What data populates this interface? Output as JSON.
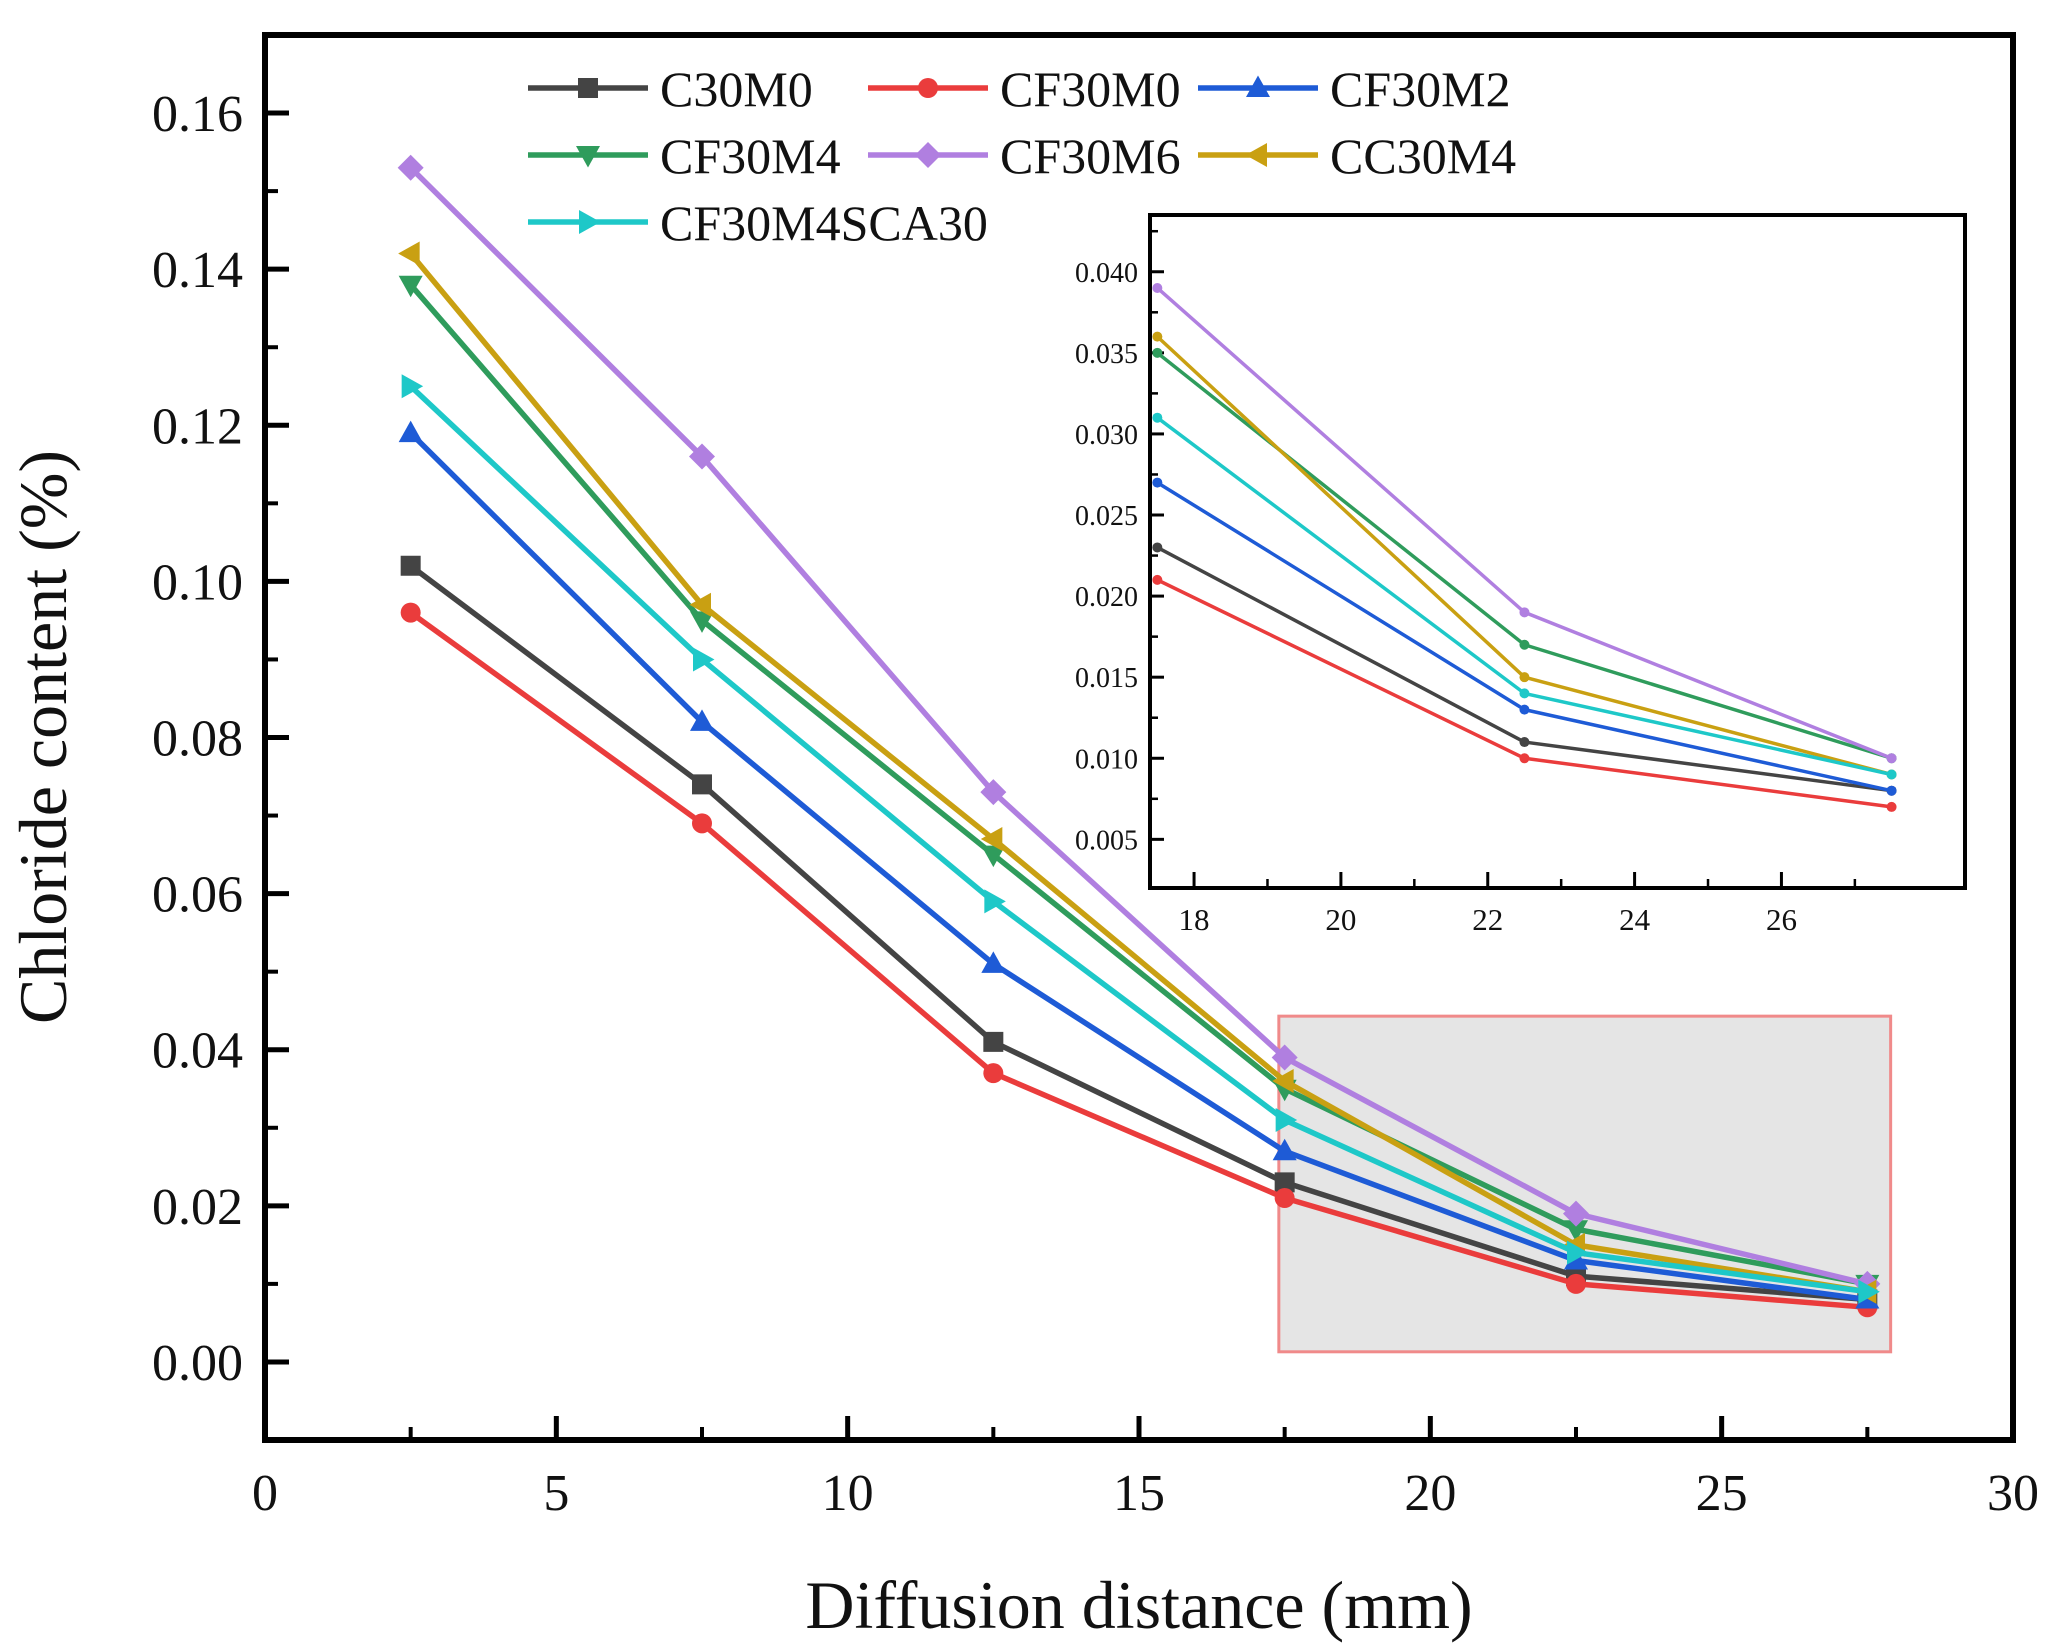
{
  "chart_data": [
    {
      "type": "line",
      "xlabel": "Diffusion distance (mm)",
      "ylabel": "Chloride content (%)",
      "xlim": [
        0,
        30
      ],
      "ylim": [
        -0.01,
        0.17
      ],
      "x_ticks": [
        "0",
        "5",
        "10",
        "15",
        "20",
        "25",
        "30"
      ],
      "y_ticks": [
        "0.00",
        "0.02",
        "0.04",
        "0.06",
        "0.08",
        "0.10",
        "0.12",
        "0.14",
        "0.16"
      ],
      "x": [
        2.5,
        7.5,
        12.5,
        17.5,
        22.5,
        27.5
      ],
      "legend_position": "top",
      "highlight_region": {
        "x": [
          17.4,
          27.9
        ],
        "y": [
          0.0013,
          0.0443
        ]
      },
      "series": [
        {
          "name": "C30M0",
          "color": "#444444",
          "marker": "square",
          "values": [
            0.102,
            0.074,
            0.041,
            0.023,
            0.011,
            0.008
          ]
        },
        {
          "name": "CF30M0",
          "color": "#ea3c3c",
          "marker": "circle",
          "values": [
            0.096,
            0.069,
            0.037,
            0.021,
            0.01,
            0.007
          ]
        },
        {
          "name": "CF30M2",
          "color": "#1e5bd6",
          "marker": "triangle-up",
          "values": [
            0.119,
            0.082,
            0.051,
            0.027,
            0.013,
            0.008
          ]
        },
        {
          "name": "CF30M4",
          "color": "#2f9c5c",
          "marker": "triangle-down",
          "values": [
            0.138,
            0.095,
            0.065,
            0.035,
            0.017,
            0.01
          ]
        },
        {
          "name": "CF30M6",
          "color": "#b07fe0",
          "marker": "diamond",
          "values": [
            0.153,
            0.116,
            0.073,
            0.039,
            0.019,
            0.01
          ]
        },
        {
          "name": "CC30M4",
          "color": "#c9a012",
          "marker": "triangle-left",
          "values": [
            0.142,
            0.097,
            0.067,
            0.036,
            0.015,
            0.009
          ]
        },
        {
          "name": "CF30M4SCA30",
          "color": "#1ec8c8",
          "marker": "triangle-right",
          "values": [
            0.125,
            0.09,
            0.059,
            0.031,
            0.014,
            0.009
          ]
        }
      ]
    },
    {
      "type": "line",
      "role": "inset",
      "xlim": [
        17.4,
        28.5
      ],
      "ylim": [
        0.002,
        0.0435
      ],
      "x_ticks": [
        "18",
        "20",
        "22",
        "24",
        "26"
      ],
      "y_ticks": [
        "0.005",
        "0.010",
        "0.015",
        "0.020",
        "0.025",
        "0.030",
        "0.035",
        "0.040"
      ],
      "x": [
        17.5,
        22.5,
        27.5
      ],
      "series": [
        {
          "name": "C30M0",
          "color": "#444444",
          "values": [
            0.023,
            0.011,
            0.008
          ]
        },
        {
          "name": "CF30M0",
          "color": "#ea3c3c",
          "values": [
            0.021,
            0.01,
            0.007
          ]
        },
        {
          "name": "CF30M2",
          "color": "#1e5bd6",
          "values": [
            0.027,
            0.013,
            0.008
          ]
        },
        {
          "name": "CF30M4",
          "color": "#2f9c5c",
          "values": [
            0.035,
            0.017,
            0.01
          ]
        },
        {
          "name": "CF30M6",
          "color": "#b07fe0",
          "values": [
            0.039,
            0.019,
            0.01
          ]
        },
        {
          "name": "CC30M4",
          "color": "#c9a012",
          "values": [
            0.036,
            0.015,
            0.009
          ]
        },
        {
          "name": "CF30M4SCA30",
          "color": "#1ec8c8",
          "values": [
            0.031,
            0.014,
            0.009
          ]
        }
      ]
    }
  ]
}
